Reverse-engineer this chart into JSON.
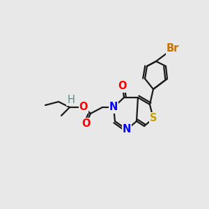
{
  "background_color": "#e8e8e8",
  "atoms": {
    "S": {
      "color": "#c8a000"
    },
    "N": {
      "color": "#0000ff"
    },
    "O": {
      "color": "#ff0000"
    },
    "Br": {
      "color": "#c87000"
    },
    "H": {
      "color": "#4a9090"
    }
  },
  "bond_color": "#1a1a1a",
  "bond_width": 1.6,
  "font_size": 10.5,
  "figsize": [
    3.0,
    3.0
  ],
  "dpi": 100
}
